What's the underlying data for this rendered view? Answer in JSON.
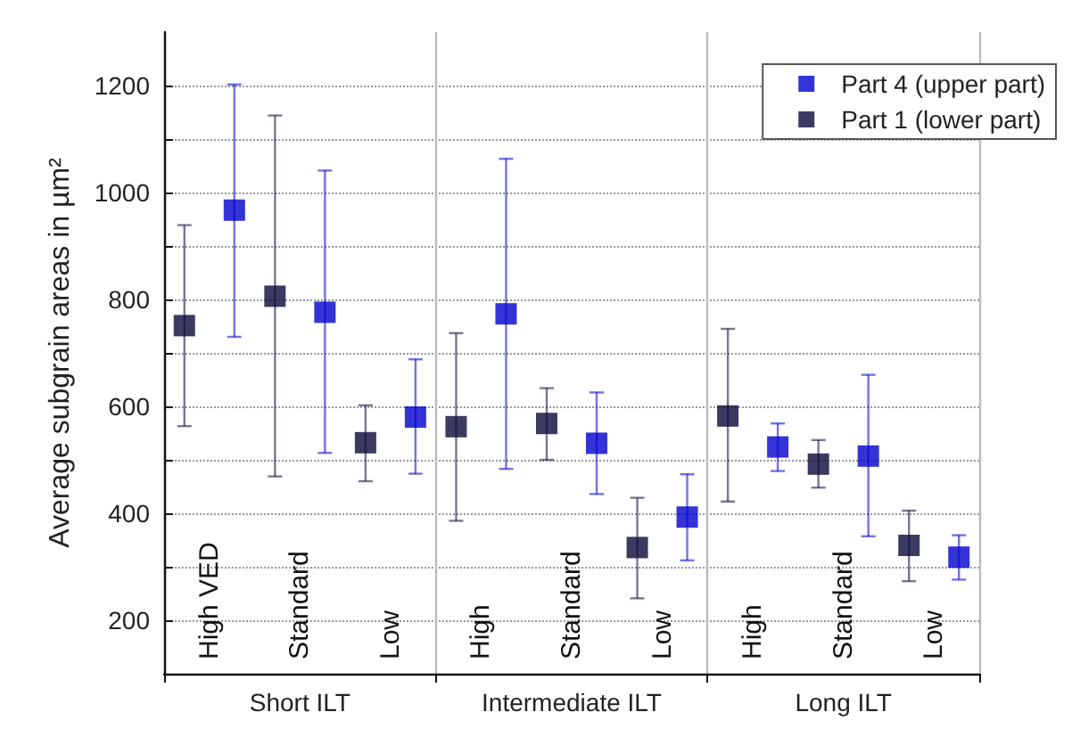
{
  "chart_data": {
    "type": "scatter",
    "ylabel": "Average subgrain areas in µm²",
    "categories": [
      "High VED",
      "Standard",
      "Low",
      "High",
      "Standard",
      "Low",
      "High",
      "Standard",
      "Low"
    ],
    "annotations": [
      "Short ILT",
      "Intermediate ILT",
      "Long ILT"
    ],
    "series": [
      {
        "name": "Part 4 (upper part)",
        "color": "#0000cc",
        "values": [
          967,
          776,
          580,
          773,
          531,
          393,
          524,
          507,
          318
        ],
        "errors": [
          [
            730,
            1202
          ],
          [
            513,
            1041
          ],
          [
            474,
            688
          ],
          [
            483,
            1063
          ],
          [
            436,
            626
          ],
          [
            312,
            473
          ],
          [
            479,
            568
          ],
          [
            357,
            659
          ],
          [
            276,
            359
          ]
        ]
      },
      {
        "name": "Part 1 (lower part)",
        "color": "#0a0a3a",
        "values": [
          751,
          806,
          532,
          562,
          568,
          336,
          582,
          492,
          340
        ],
        "errors": [
          [
            563,
            939
          ],
          [
            469,
            1144
          ],
          [
            460,
            602
          ],
          [
            386,
            737
          ],
          [
            500,
            634
          ],
          [
            241,
            429
          ],
          [
            422,
            745
          ],
          [
            448,
            537
          ],
          [
            273,
            405
          ]
        ]
      }
    ],
    "ylim": [
      100,
      1300
    ],
    "yticks": [
      200,
      {
        "value": 300,
        "label": null
      },
      400,
      {
        "value": 500,
        "label": null
      },
      600,
      {
        "value": 700,
        "label": null
      },
      800,
      {
        "value": 900,
        "label": null
      },
      1000,
      {
        "value": 1100,
        "label": null
      },
      1200
    ],
    "grid": "y",
    "legend": "top right",
    "marker": "square"
  }
}
